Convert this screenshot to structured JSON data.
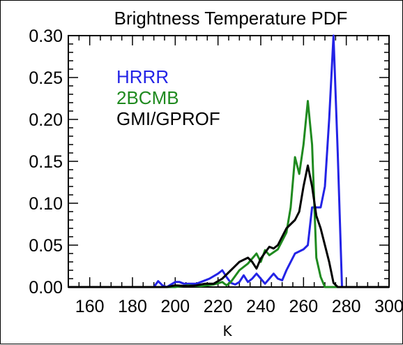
{
  "chart_data": {
    "type": "line",
    "title": "Brightness Temperature PDF",
    "xlabel": "K",
    "ylabel": "",
    "xlim": [
      150,
      300
    ],
    "ylim": [
      0,
      0.3
    ],
    "x_ticks": [
      "160",
      "180",
      "200",
      "220",
      "240",
      "260",
      "280",
      "300"
    ],
    "y_ticks": [
      "0.00",
      "0.05",
      "0.10",
      "0.15",
      "0.20",
      "0.25",
      "0.30"
    ],
    "grid": false,
    "legend_position": "top-left",
    "series": [
      {
        "name": "HRRR",
        "color": "#2323e6",
        "points": [
          [
            150,
            0
          ],
          [
            190,
            0
          ],
          [
            192,
            0.007
          ],
          [
            194,
            0.002
          ],
          [
            196,
            0
          ],
          [
            200,
            0.006
          ],
          [
            202,
            0.006
          ],
          [
            204,
            0.004
          ],
          [
            210,
            0.004
          ],
          [
            212,
            0.006
          ],
          [
            216,
            0.01
          ],
          [
            220,
            0.016
          ],
          [
            222,
            0.02
          ],
          [
            224,
            0.012
          ],
          [
            226,
            0.005
          ],
          [
            228,
            0.003
          ],
          [
            230,
            0.006
          ],
          [
            232,
            0.014
          ],
          [
            234,
            0.006
          ],
          [
            236,
            0.01
          ],
          [
            238,
            0.016
          ],
          [
            240,
            0.01
          ],
          [
            242,
            0.004
          ],
          [
            244,
            0.01
          ],
          [
            246,
            0.016
          ],
          [
            248,
            0.01
          ],
          [
            250,
            0.008
          ],
          [
            252,
            0.02
          ],
          [
            256,
            0.04
          ],
          [
            260,
            0.045
          ],
          [
            262,
            0.05
          ],
          [
            264,
            0.095
          ],
          [
            268,
            0.095
          ],
          [
            270,
            0.12
          ],
          [
            272,
            0.2
          ],
          [
            274,
            0.3
          ],
          [
            276,
            0.16
          ],
          [
            278,
            0
          ],
          [
            300,
            0
          ]
        ]
      },
      {
        "name": "2BCMB",
        "color": "#1f8a1f",
        "points": [
          [
            150,
            0
          ],
          [
            200,
            0
          ],
          [
            206,
            0.002
          ],
          [
            212,
            0.001
          ],
          [
            218,
            0.003
          ],
          [
            222,
            0.006
          ],
          [
            224,
            0.002
          ],
          [
            226,
            0.006
          ],
          [
            230,
            0.02
          ],
          [
            234,
            0.028
          ],
          [
            238,
            0.04
          ],
          [
            240,
            0.03
          ],
          [
            242,
            0.044
          ],
          [
            244,
            0.038
          ],
          [
            248,
            0.045
          ],
          [
            252,
            0.065
          ],
          [
            254,
            0.095
          ],
          [
            256,
            0.155
          ],
          [
            258,
            0.135
          ],
          [
            260,
            0.17
          ],
          [
            262,
            0.222
          ],
          [
            264,
            0.17
          ],
          [
            266,
            0.035
          ],
          [
            268,
            0.012
          ],
          [
            270,
            0
          ],
          [
            300,
            0
          ]
        ]
      },
      {
        "name": "GMI/GPROF",
        "color": "#000000",
        "points": [
          [
            150,
            0
          ],
          [
            196,
            0
          ],
          [
            200,
            0.002
          ],
          [
            206,
            0.001
          ],
          [
            210,
            0.002
          ],
          [
            214,
            0.004
          ],
          [
            218,
            0.004
          ],
          [
            222,
            0.01
          ],
          [
            226,
            0.02
          ],
          [
            230,
            0.03
          ],
          [
            234,
            0.035
          ],
          [
            236,
            0.03
          ],
          [
            238,
            0.022
          ],
          [
            240,
            0.034
          ],
          [
            244,
            0.048
          ],
          [
            246,
            0.046
          ],
          [
            248,
            0.05
          ],
          [
            252,
            0.07
          ],
          [
            254,
            0.075
          ],
          [
            256,
            0.08
          ],
          [
            258,
            0.09
          ],
          [
            260,
            0.12
          ],
          [
            262,
            0.145
          ],
          [
            264,
            0.12
          ],
          [
            266,
            0.085
          ],
          [
            268,
            0.07
          ],
          [
            270,
            0.05
          ],
          [
            272,
            0.03
          ],
          [
            274,
            0.005
          ],
          [
            276,
            0
          ],
          [
            300,
            0
          ]
        ]
      }
    ]
  }
}
